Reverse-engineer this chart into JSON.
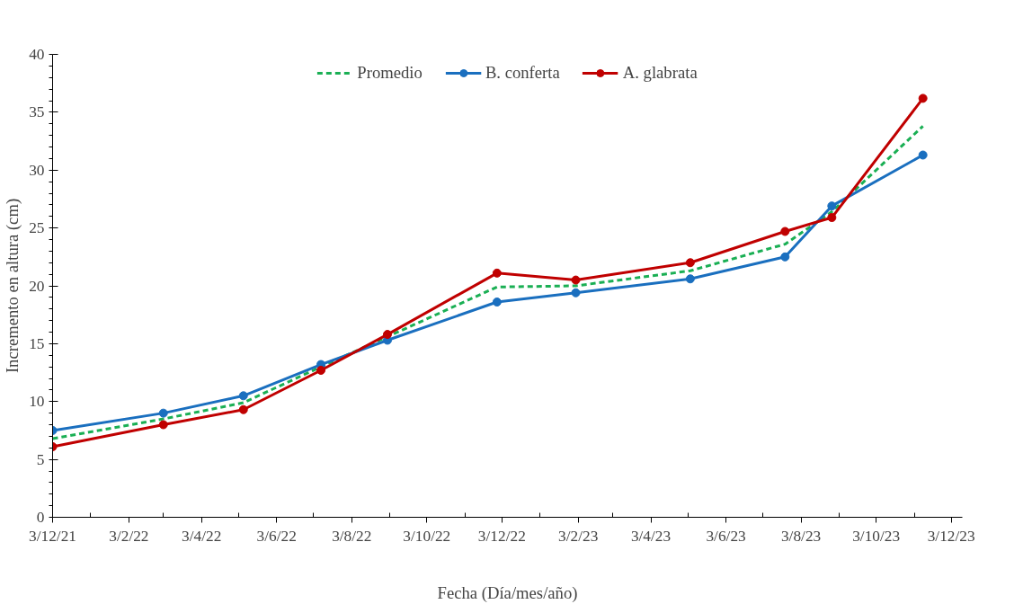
{
  "chart_data": {
    "type": "line",
    "xlabel": "Fecha (Día/mes/año)",
    "ylabel": "Incremento en altura (cm)",
    "x": [
      "2021-12-03",
      "2022-03-03",
      "2022-05-07",
      "2022-07-09",
      "2022-09-01",
      "2022-11-29",
      "2023-02-01",
      "2023-05-05",
      "2023-07-21",
      "2023-08-28",
      "2023-11-10"
    ],
    "series": [
      {
        "name": "Promedio",
        "color": "#1aaf54",
        "line_style": "dashed",
        "marker": "none",
        "values": [
          6.8,
          8.5,
          9.9,
          13.0,
          15.6,
          19.9,
          20.0,
          21.3,
          23.6,
          26.4,
          33.8
        ]
      },
      {
        "name": "B. conferta",
        "color": "#1a6fbf",
        "line_style": "solid",
        "marker": "circle",
        "values": [
          7.5,
          9.0,
          10.5,
          13.2,
          15.3,
          18.6,
          19.4,
          20.6,
          22.5,
          26.9,
          31.3
        ]
      },
      {
        "name": "A. glabrata",
        "color": "#c00000",
        "line_style": "solid",
        "marker": "circle",
        "values": [
          6.1,
          8.0,
          9.3,
          12.7,
          15.8,
          21.1,
          20.5,
          22.0,
          24.7,
          25.9,
          36.2
        ]
      }
    ],
    "xlim": [
      "2021-12-03",
      "2023-12-12"
    ],
    "xticks": [
      {
        "value": "2021-12-03",
        "label": "3/12/21"
      },
      {
        "value": "2022-01-03",
        "label": null
      },
      {
        "value": "2022-02-03",
        "label": "3/2/22"
      },
      {
        "value": "2022-03-03",
        "label": null
      },
      {
        "value": "2022-04-03",
        "label": "3/4/22"
      },
      {
        "value": "2022-05-03",
        "label": null
      },
      {
        "value": "2022-06-03",
        "label": "3/6/22"
      },
      {
        "value": "2022-07-03",
        "label": null
      },
      {
        "value": "2022-08-03",
        "label": "3/8/22"
      },
      {
        "value": "2022-09-03",
        "label": null
      },
      {
        "value": "2022-10-03",
        "label": "3/10/22"
      },
      {
        "value": "2022-11-03",
        "label": null
      },
      {
        "value": "2022-12-03",
        "label": "3/12/22"
      },
      {
        "value": "2023-01-03",
        "label": null
      },
      {
        "value": "2023-02-03",
        "label": "3/2/23"
      },
      {
        "value": "2023-03-03",
        "label": null
      },
      {
        "value": "2023-04-03",
        "label": "3/4/23"
      },
      {
        "value": "2023-05-03",
        "label": null
      },
      {
        "value": "2023-06-03",
        "label": "3/6/23"
      },
      {
        "value": "2023-07-03",
        "label": null
      },
      {
        "value": "2023-08-03",
        "label": "3/8/23"
      },
      {
        "value": "2023-09-03",
        "label": null
      },
      {
        "value": "2023-10-03",
        "label": "3/10/23"
      },
      {
        "value": "2023-11-03",
        "label": null
      },
      {
        "value": "2023-12-03",
        "label": "3/12/23"
      }
    ],
    "ylim": [
      0,
      40
    ],
    "yticks": [
      0,
      5,
      10,
      15,
      20,
      25,
      30,
      35,
      40
    ],
    "grid": false,
    "legend": "top"
  }
}
